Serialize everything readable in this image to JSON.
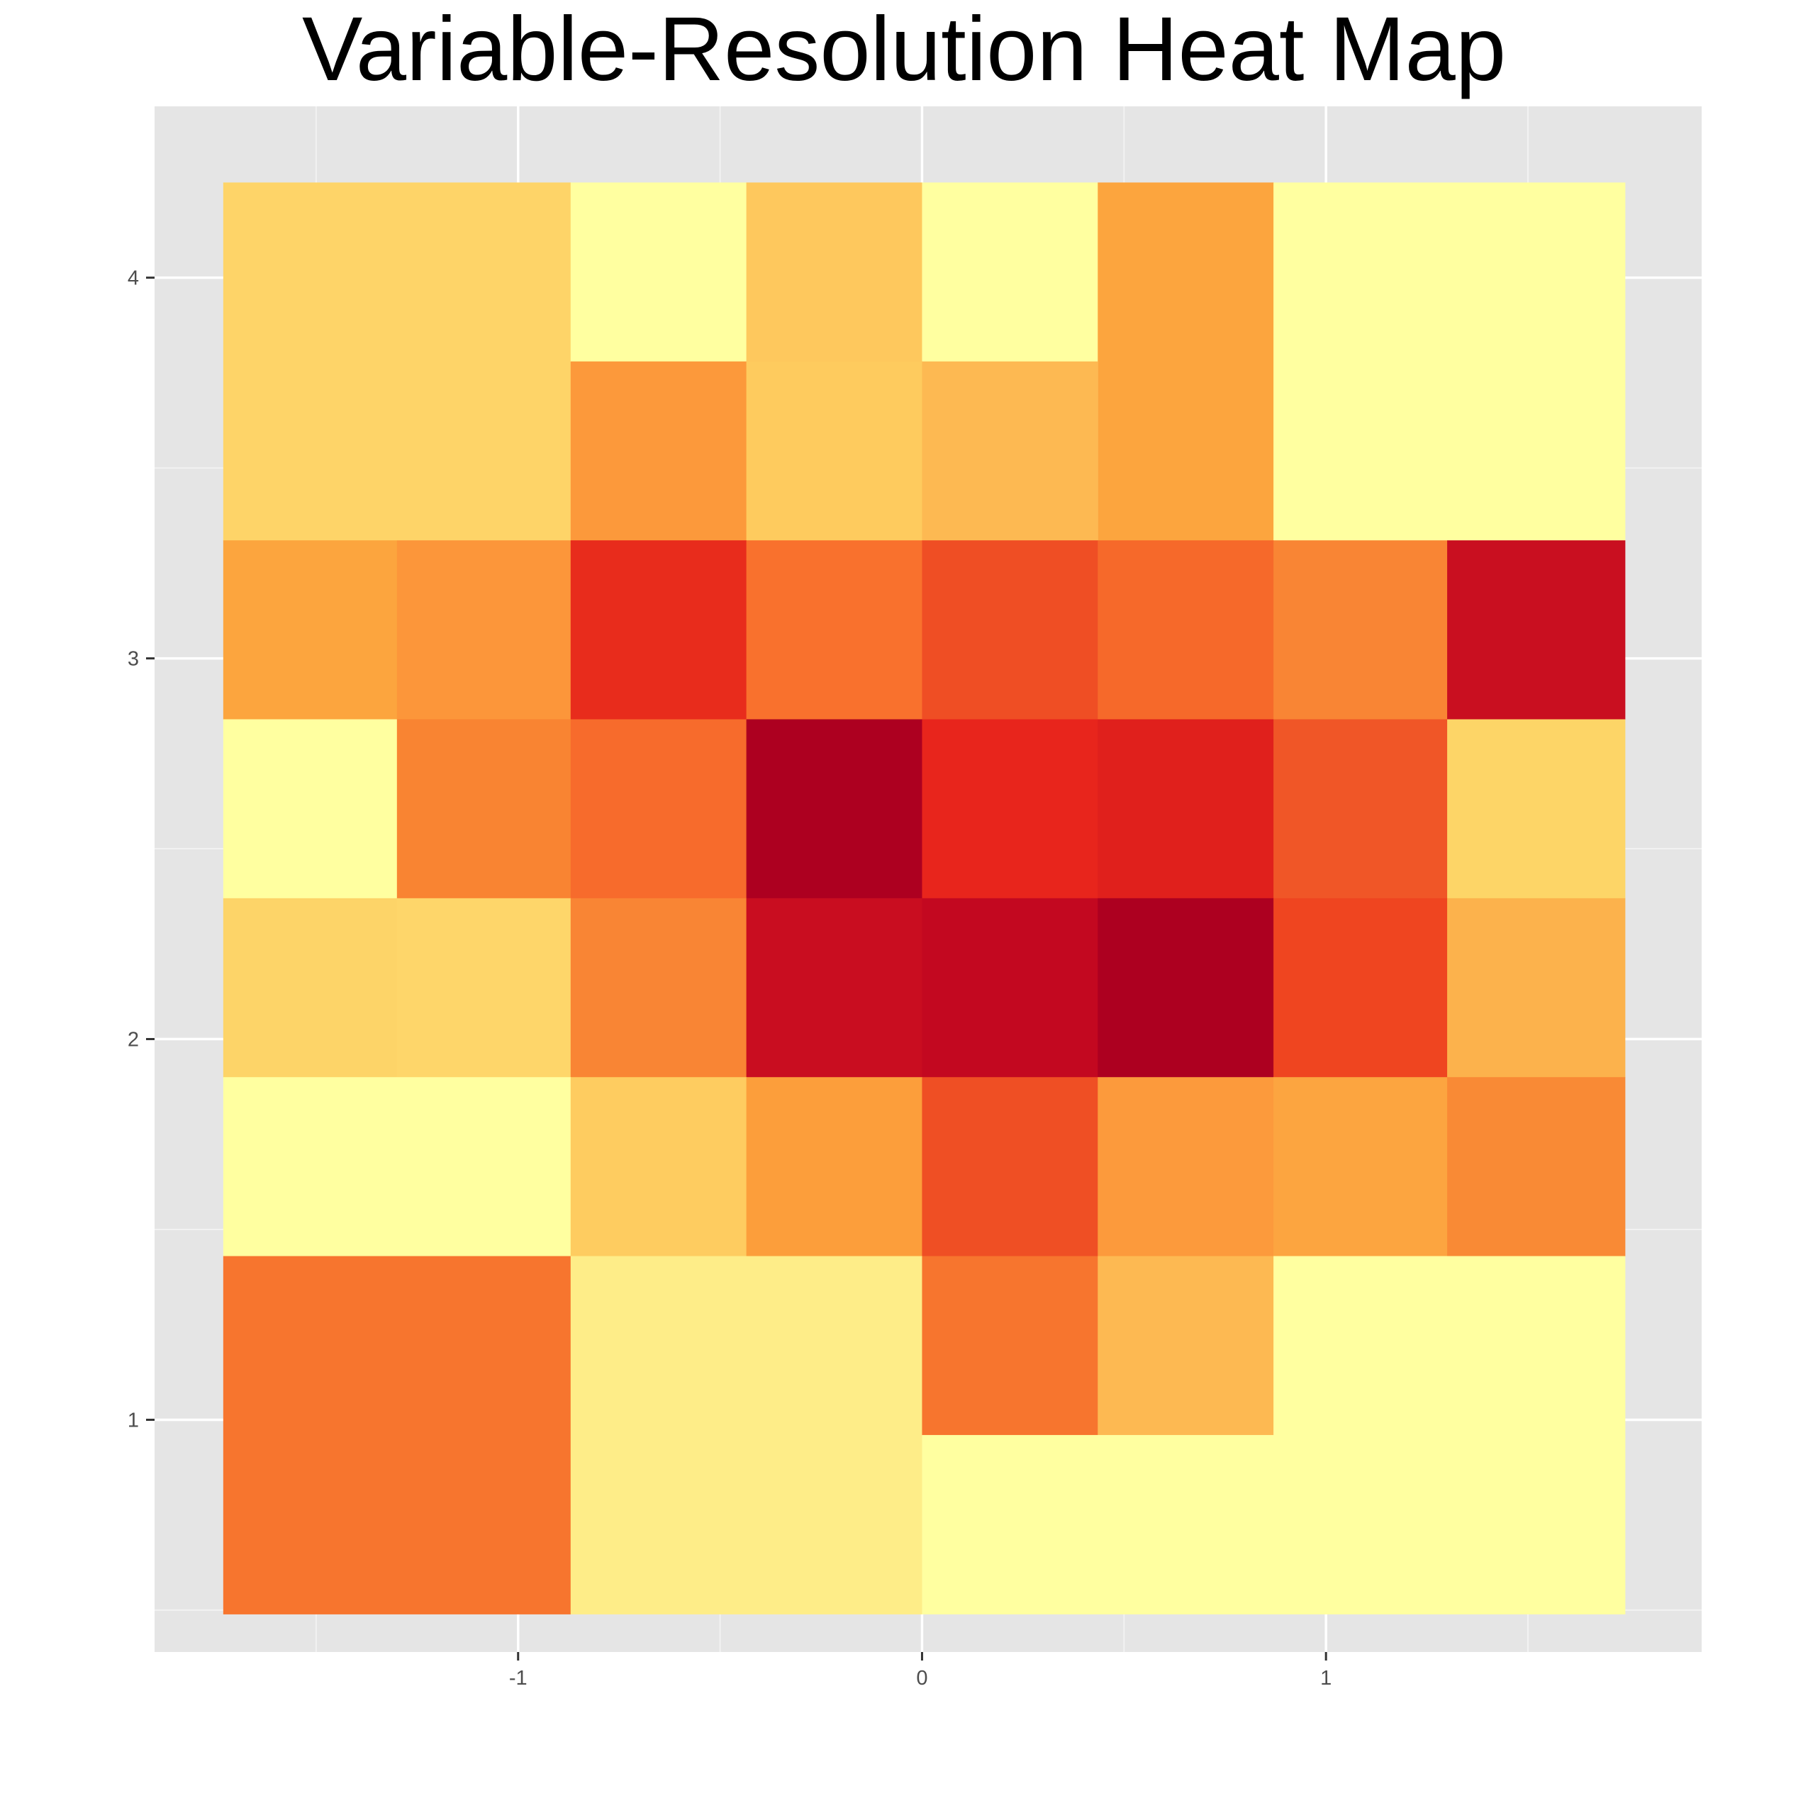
{
  "chart_data": {
    "type": "heatmap",
    "title": "Variable-Resolution Heat Map",
    "xlabel": "",
    "ylabel": "",
    "xlim": [
      -1.9,
      1.93
    ],
    "ylim": [
      0.39,
      4.45
    ],
    "x_ticks": [
      -1,
      0,
      1
    ],
    "y_ticks": [
      1,
      2,
      3,
      4
    ],
    "x_tick_labels": [
      "-1",
      "0",
      "1"
    ],
    "y_tick_labels": [
      "1",
      "2",
      "3",
      "4"
    ],
    "grid": true,
    "legend": "none",
    "colors": {
      "panel": "#e5e5e5",
      "grid_major": "#ffffff",
      "grid_minor": "#f2f2f2",
      "tick": "#333333",
      "scale": [
        "#ffffa0",
        "#fee87f",
        "#fed468",
        "#fecb5e",
        "#fdb74e",
        "#fca53e",
        "#fc963a",
        "#f98432",
        "#f7722c",
        "#f06329",
        "#ef4a23",
        "#e52c1b",
        "#e01f1c",
        "#c90d20",
        "#c00a22",
        "#ad0020"
      ]
    },
    "tiles": [
      {
        "x0": -1.73,
        "x1": -0.87,
        "y0": 3.31,
        "y1": 4.25,
        "color": "#fed468"
      },
      {
        "x0": -0.87,
        "x1": -0.435,
        "y0": 3.78,
        "y1": 4.25,
        "color": "#ffffa0"
      },
      {
        "x0": -0.435,
        "x1": 0.0,
        "y0": 3.78,
        "y1": 4.25,
        "color": "#fec85d"
      },
      {
        "x0": 0.0,
        "x1": 0.435,
        "y0": 3.78,
        "y1": 4.25,
        "color": "#ffffa0"
      },
      {
        "x0": 0.435,
        "x1": 0.87,
        "y0": 3.31,
        "y1": 4.25,
        "color": "#fca53e"
      },
      {
        "x0": 0.87,
        "x1": 1.74,
        "y0": 3.31,
        "y1": 4.25,
        "color": "#ffffa0"
      },
      {
        "x0": -0.87,
        "x1": -0.435,
        "y0": 3.31,
        "y1": 3.78,
        "color": "#fc993b"
      },
      {
        "x0": -0.435,
        "x1": 0.0,
        "y0": 3.31,
        "y1": 3.78,
        "color": "#fecb5e"
      },
      {
        "x0": 0.0,
        "x1": 0.435,
        "y0": 3.31,
        "y1": 3.78,
        "color": "#fdb952"
      },
      {
        "x0": -1.73,
        "x1": -1.3,
        "y0": 2.84,
        "y1": 3.31,
        "color": "#fca53e"
      },
      {
        "x0": -1.3,
        "x1": -0.87,
        "y0": 2.84,
        "y1": 3.31,
        "color": "#fc963a"
      },
      {
        "x0": -0.87,
        "x1": -0.435,
        "y0": 2.84,
        "y1": 3.31,
        "color": "#e82c1c"
      },
      {
        "x0": -0.435,
        "x1": 0.0,
        "y0": 2.84,
        "y1": 3.31,
        "color": "#f9712d"
      },
      {
        "x0": 0.0,
        "x1": 0.435,
        "y0": 2.84,
        "y1": 3.31,
        "color": "#ef4e24"
      },
      {
        "x0": 0.435,
        "x1": 0.87,
        "y0": 2.84,
        "y1": 3.31,
        "color": "#f6692a"
      },
      {
        "x0": 0.87,
        "x1": 1.3,
        "y0": 2.84,
        "y1": 3.31,
        "color": "#f98534"
      },
      {
        "x0": 1.3,
        "x1": 1.74,
        "y0": 2.84,
        "y1": 3.31,
        "color": "#c90f20"
      },
      {
        "x0": -1.73,
        "x1": -1.3,
        "y0": 2.37,
        "y1": 2.84,
        "color": "#ffffa0"
      },
      {
        "x0": -1.3,
        "x1": -0.87,
        "y0": 2.37,
        "y1": 2.84,
        "color": "#f98432"
      },
      {
        "x0": -0.87,
        "x1": -0.435,
        "y0": 2.37,
        "y1": 2.84,
        "color": "#f76b2c"
      },
      {
        "x0": -0.435,
        "x1": 0.0,
        "y0": 2.37,
        "y1": 2.84,
        "color": "#ad0020"
      },
      {
        "x0": 0.0,
        "x1": 0.435,
        "y0": 2.37,
        "y1": 2.84,
        "color": "#e8251c"
      },
      {
        "x0": 0.435,
        "x1": 0.87,
        "y0": 2.37,
        "y1": 2.84,
        "color": "#e0201c"
      },
      {
        "x0": 0.87,
        "x1": 1.3,
        "y0": 2.37,
        "y1": 2.84,
        "color": "#f05627"
      },
      {
        "x0": 1.3,
        "x1": 1.74,
        "y0": 2.37,
        "y1": 2.84,
        "color": "#fdd567"
      },
      {
        "x0": -1.73,
        "x1": -1.3,
        "y0": 1.9,
        "y1": 2.37,
        "color": "#fdd468"
      },
      {
        "x0": -1.3,
        "x1": -0.87,
        "y0": 1.9,
        "y1": 2.37,
        "color": "#fed66a"
      },
      {
        "x0": -0.87,
        "x1": -0.435,
        "y0": 1.9,
        "y1": 2.37,
        "color": "#f98534"
      },
      {
        "x0": -0.435,
        "x1": 0.0,
        "y0": 1.9,
        "y1": 2.37,
        "color": "#c90d20"
      },
      {
        "x0": 0.0,
        "x1": 0.435,
        "y0": 1.9,
        "y1": 2.37,
        "color": "#c30820"
      },
      {
        "x0": 0.435,
        "x1": 0.87,
        "y0": 1.9,
        "y1": 2.37,
        "color": "#ad0020"
      },
      {
        "x0": 0.87,
        "x1": 1.3,
        "y0": 1.9,
        "y1": 2.37,
        "color": "#ef4520"
      },
      {
        "x0": 1.3,
        "x1": 1.74,
        "y0": 1.9,
        "y1": 2.37,
        "color": "#fcb24c"
      },
      {
        "x0": -1.73,
        "x1": -0.87,
        "y0": 1.43,
        "y1": 1.9,
        "color": "#ffffa0"
      },
      {
        "x0": -0.87,
        "x1": -0.435,
        "y0": 1.43,
        "y1": 1.9,
        "color": "#fecc60"
      },
      {
        "x0": -0.435,
        "x1": 0.0,
        "y0": 1.43,
        "y1": 1.9,
        "color": "#fc9e3b"
      },
      {
        "x0": 0.0,
        "x1": 0.435,
        "y0": 1.43,
        "y1": 1.9,
        "color": "#ef4f24"
      },
      {
        "x0": 0.435,
        "x1": 0.87,
        "y0": 1.43,
        "y1": 1.9,
        "color": "#fc9a3c"
      },
      {
        "x0": 0.87,
        "x1": 1.3,
        "y0": 1.43,
        "y1": 1.9,
        "color": "#fca540"
      },
      {
        "x0": 1.3,
        "x1": 1.74,
        "y0": 1.43,
        "y1": 1.9,
        "color": "#f98a35"
      },
      {
        "x0": -1.73,
        "x1": -0.87,
        "y0": 0.49,
        "y1": 1.43,
        "color": "#f7752e"
      },
      {
        "x0": -0.87,
        "x1": 0.0,
        "y0": 0.49,
        "y1": 1.43,
        "color": "#feed88"
      },
      {
        "x0": 0.0,
        "x1": 0.435,
        "y0": 0.96,
        "y1": 1.43,
        "color": "#f7752e"
      },
      {
        "x0": 0.435,
        "x1": 0.87,
        "y0": 0.96,
        "y1": 1.43,
        "color": "#fdb952"
      },
      {
        "x0": 0.87,
        "x1": 1.74,
        "y0": 0.96,
        "y1": 1.43,
        "color": "#ffffa0"
      },
      {
        "x0": 0.0,
        "x1": 1.74,
        "y0": 0.49,
        "y1": 0.96,
        "color": "#ffffa0"
      }
    ]
  }
}
